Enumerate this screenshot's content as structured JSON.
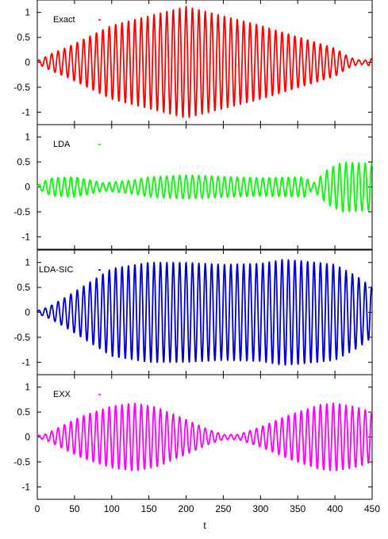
{
  "chart_data": {
    "type": "line",
    "layout": "vertically stacked panels sharing x axis",
    "xlabel": "t",
    "xlim": [
      0,
      450
    ],
    "xticks": [
      0,
      50,
      100,
      150,
      200,
      250,
      300,
      350,
      400,
      450
    ],
    "yticks": [
      -1,
      -0.5,
      0,
      0.5,
      1
    ],
    "panels": [
      {
        "label": "Exact",
        "color": "#ff0000",
        "ylim": [
          -1.25,
          1.25
        ],
        "amplitude_envelope": {
          "t": [
            0,
            10,
            20,
            40,
            100,
            200,
            300,
            400,
            420,
            430,
            440,
            450
          ],
          "a": [
            0.03,
            0.1,
            0.18,
            0.3,
            0.74,
            1.12,
            0.74,
            0.28,
            0.1,
            0.05,
            0.04,
            0.08
          ]
        }
      },
      {
        "label": "LDA",
        "color": "#00ff00",
        "ylim": [
          -1.25,
          1.25
        ],
        "amplitude_envelope": {
          "t": [
            0,
            10,
            20,
            50,
            70,
            90,
            130,
            150,
            200,
            260,
            300,
            360,
            370,
            390,
            410,
            450
          ],
          "a": [
            0.03,
            0.12,
            0.18,
            0.2,
            0.14,
            0.08,
            0.14,
            0.2,
            0.24,
            0.2,
            0.18,
            0.2,
            0.06,
            0.35,
            0.5,
            0.47
          ]
        }
      },
      {
        "label": "LDA-SIC",
        "color": "#0000cc",
        "ylim": [
          -1.25,
          1.25
        ],
        "amplitude_envelope": {
          "t": [
            0,
            10,
            20,
            40,
            100,
            150,
            200,
            250,
            300,
            330,
            350,
            400,
            430,
            450
          ],
          "a": [
            0.03,
            0.08,
            0.15,
            0.32,
            0.88,
            1.0,
            1.0,
            0.96,
            0.98,
            1.06,
            1.04,
            0.96,
            0.72,
            0.5
          ]
        }
      },
      {
        "label": "EXX",
        "color": "#ff00ff",
        "ylim": [
          -1.25,
          1.25
        ],
        "amplitude_envelope": {
          "t": [
            0,
            10,
            30,
            60,
            100,
            130,
            160,
            200,
            230,
            250,
            270,
            300,
            340,
            380,
            400,
            430,
            450
          ],
          "a": [
            0.03,
            0.05,
            0.2,
            0.42,
            0.62,
            0.68,
            0.6,
            0.35,
            0.15,
            0.05,
            0.05,
            0.2,
            0.45,
            0.65,
            0.68,
            0.6,
            0.5
          ]
        }
      }
    ],
    "oscillation_period": 8.6
  }
}
